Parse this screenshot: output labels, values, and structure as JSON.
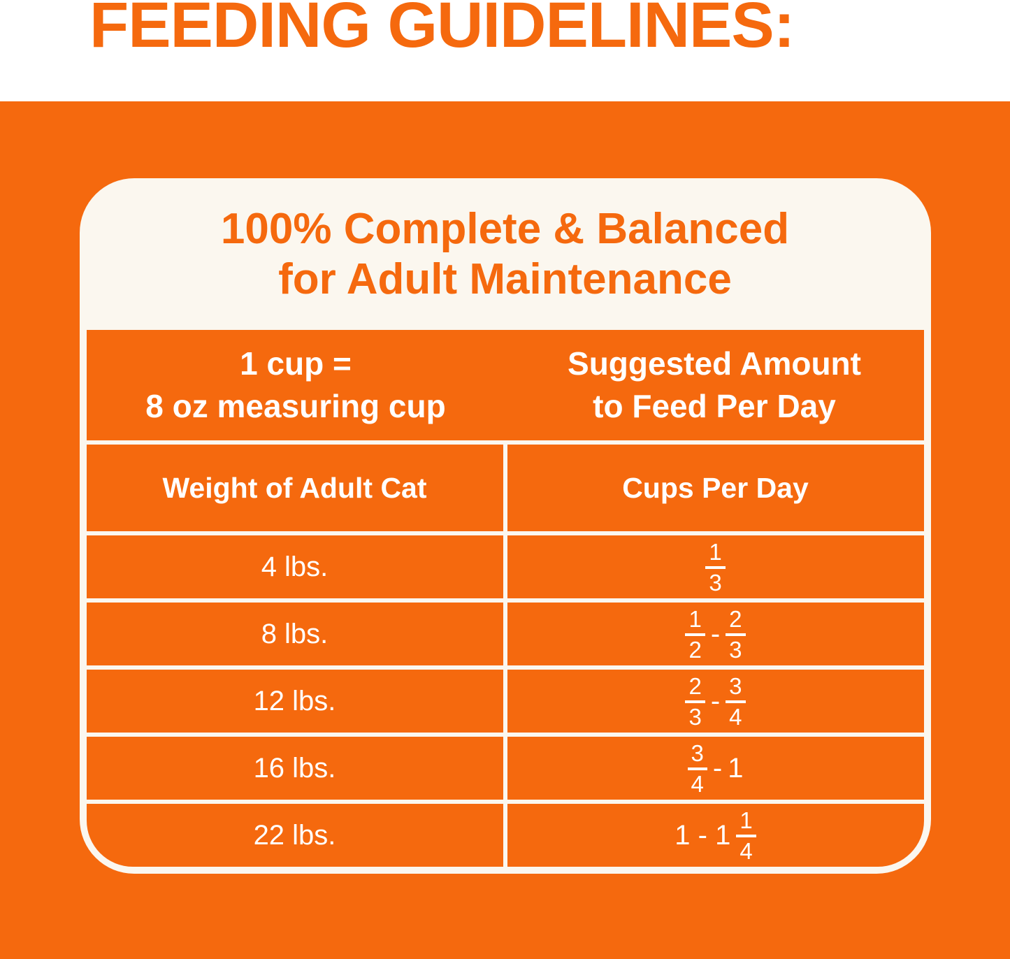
{
  "heading": "FEEDING GUIDELINES:",
  "colors": {
    "brand_orange": "#F5690E",
    "card_white": "#FBF7EF",
    "text_white": "#FFFFFF"
  },
  "card": {
    "title_line1": "100% Complete & Balanced",
    "title_line2": "for Adult Maintenance",
    "measure": {
      "left_line1": "1 cup =",
      "left_line2": "8 oz measuring cup",
      "right_line1": "Suggested Amount",
      "right_line2": "to Feed Per Day"
    },
    "columns": {
      "left": "Weight of Adult Cat",
      "right": "Cups Per Day"
    },
    "rows": [
      {
        "weight": "4 lbs.",
        "cups_text": "1/3",
        "cups": [
          {
            "frac": [
              "1",
              "3"
            ]
          }
        ]
      },
      {
        "weight": "8 lbs.",
        "cups_text": "1/2 - 2/3",
        "cups": [
          {
            "frac": [
              "1",
              "2"
            ]
          },
          {
            "text": "-"
          },
          {
            "frac": [
              "2",
              "3"
            ]
          }
        ]
      },
      {
        "weight": "12 lbs.",
        "cups_text": "2/3 - 3/4",
        "cups": [
          {
            "frac": [
              "2",
              "3"
            ]
          },
          {
            "text": "-"
          },
          {
            "frac": [
              "3",
              "4"
            ]
          }
        ]
      },
      {
        "weight": "16 lbs.",
        "cups_text": "3/4 - 1",
        "cups": [
          {
            "frac": [
              "3",
              "4"
            ]
          },
          {
            "text": "-"
          },
          {
            "text": "1"
          }
        ]
      },
      {
        "weight": "22 lbs.",
        "cups_text": "1 - 1 1/4",
        "cups": [
          {
            "text": "1 - 1"
          },
          {
            "frac": [
              "1",
              "4"
            ]
          }
        ]
      }
    ]
  }
}
